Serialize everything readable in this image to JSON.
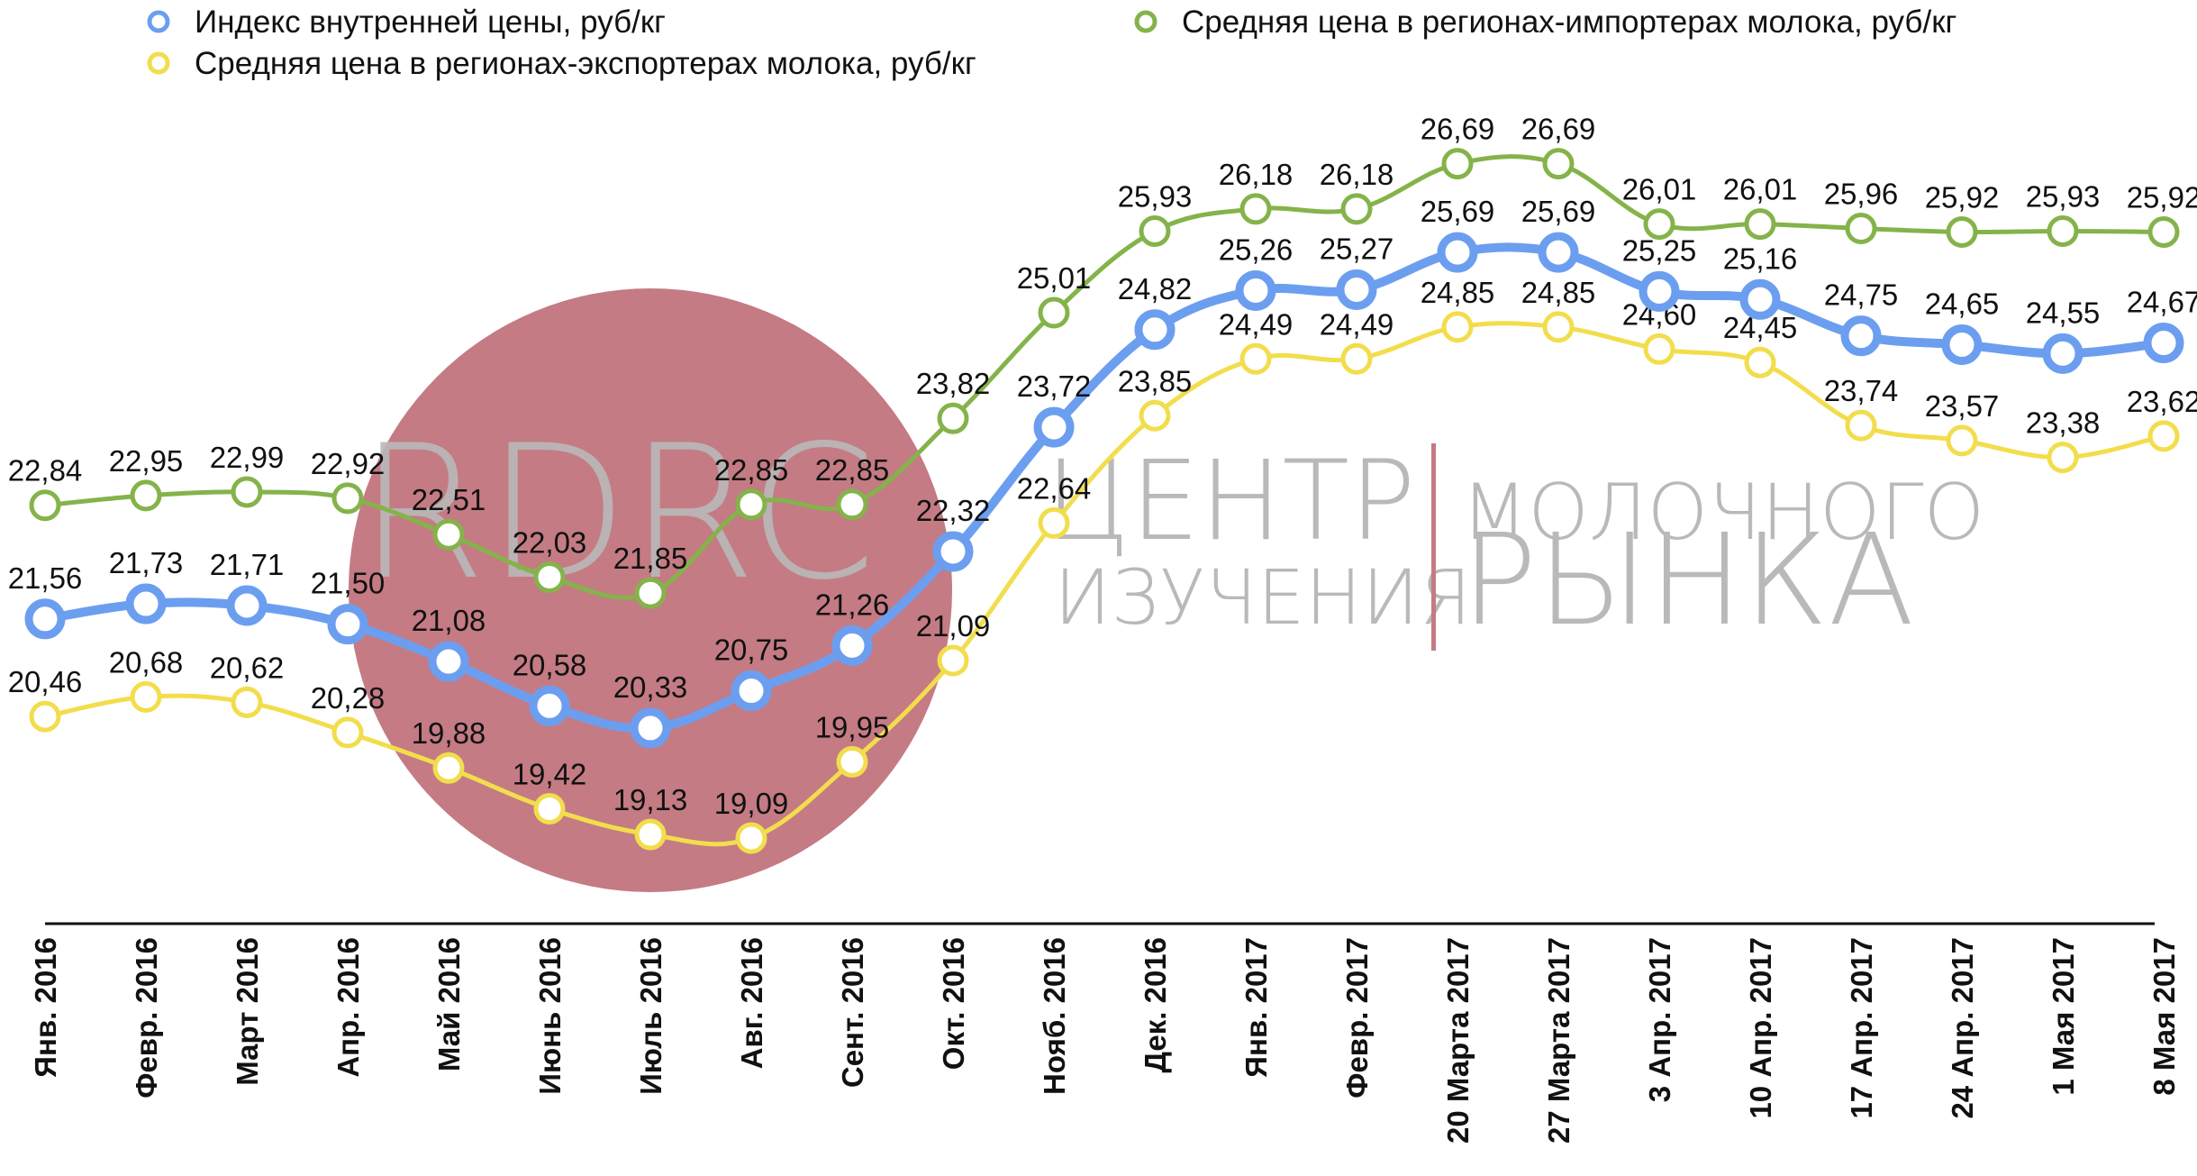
{
  "chart_data": {
    "type": "line",
    "categories": [
      "Янв. 2016",
      "Февр. 2016",
      "Март 2016",
      "Апр. 2016",
      "Май 2016",
      "Июнь 2016",
      "Июль 2016",
      "Авг. 2016",
      "Сент. 2016",
      "Окт. 2016",
      "Нояб. 2016",
      "Дек. 2016",
      "Янв. 2017",
      "Февр. 2017",
      "20 Марта 2017",
      "27 Марта 2017",
      "3 Апр. 2017",
      "10 Апр. 2017",
      "17 Апр. 2017",
      "24 Апр. 2017",
      "1 Мая 2017",
      "8 Мая 2017"
    ],
    "series": [
      {
        "name": "Индекс внутренней цены, руб/кг",
        "color": "#6c9ef0",
        "values": [
          21.56,
          21.73,
          21.71,
          21.5,
          21.08,
          20.58,
          20.33,
          20.75,
          21.26,
          22.32,
          23.72,
          24.82,
          25.26,
          25.27,
          25.69,
          25.69,
          25.25,
          25.16,
          24.75,
          24.65,
          24.55,
          24.67
        ],
        "labels": [
          "21,56",
          "21,73",
          "21,71",
          "21,50",
          "21,08",
          "20,58",
          "20,33",
          "20,75",
          "21,26",
          "22,32",
          "23,72",
          "24,82",
          "25,26",
          "25,27",
          "25,69",
          "25,69",
          "25,25",
          "25,16",
          "24,75",
          "24,65",
          "24,55",
          "24,67"
        ]
      },
      {
        "name": "Средняя цена в регионах-экспортерах молока, руб/кг",
        "color": "#f2dd4c",
        "values": [
          20.46,
          20.68,
          20.62,
          20.28,
          19.88,
          19.42,
          19.13,
          19.09,
          19.95,
          21.09,
          22.64,
          23.85,
          24.49,
          24.49,
          24.85,
          24.85,
          24.6,
          24.45,
          23.74,
          23.57,
          23.38,
          23.62
        ],
        "labels": [
          "20,46",
          "20,68",
          "20,62",
          "20,28",
          "19,88",
          "19,42",
          "19,13",
          "19,09",
          "19,95",
          "21,09",
          "22,64",
          "23,85",
          "24,49",
          "24,49",
          "24,85",
          "24,85",
          "24,60",
          "24,45",
          "23,74",
          "23,57",
          "23,38",
          "23,62"
        ]
      },
      {
        "name": "Средняя цена в регионах-импортерах молока, руб/кг",
        "color": "#84b34a",
        "values": [
          22.84,
          22.95,
          22.99,
          22.92,
          22.51,
          22.03,
          21.85,
          22.85,
          22.85,
          23.82,
          25.01,
          25.93,
          26.18,
          26.18,
          26.69,
          26.69,
          26.01,
          26.01,
          25.96,
          25.92,
          25.93,
          25.92
        ],
        "labels": [
          "22,84",
          "22,95",
          "22,99",
          "22,92",
          "22,51",
          "22,03",
          "21,85",
          "22,85",
          "22,85",
          "23,82",
          "25,01",
          "25,93",
          "26,18",
          "26,18",
          "26,69",
          "26,69",
          "26,01",
          "26,01",
          "25,96",
          "25,92",
          "25,93",
          "25,92"
        ]
      }
    ],
    "grid": false,
    "legend_position": "top"
  },
  "watermark": {
    "logo": "RDRC",
    "line1_left": "ЦЕНТР",
    "line2_left": "ИЗУЧЕНИЯ",
    "line1_right": "МОЛОЧНОГО",
    "line2_right": "РЫНКА",
    "circle_color": "#c47b84",
    "divider_color": "#c47b84"
  }
}
